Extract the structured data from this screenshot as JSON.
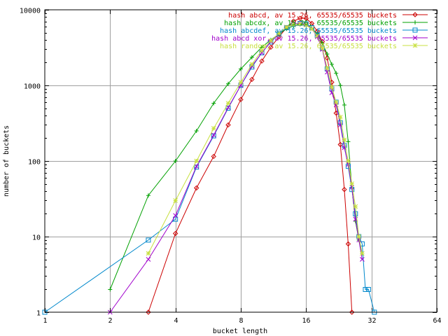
{
  "chart_data": {
    "type": "line",
    "title": "",
    "xlabel": "bucket length",
    "ylabel": "number of buckets",
    "x_scale": "log2",
    "y_scale": "log10",
    "xlim": [
      1,
      64
    ],
    "ylim": [
      1,
      10000
    ],
    "x_ticks": [
      "1",
      "2",
      "4",
      "8",
      "16",
      "32",
      "64"
    ],
    "y_ticks": [
      "1",
      "10",
      "100",
      "1000",
      "10000"
    ],
    "grid": true,
    "legend_position": "top-right",
    "series": [
      {
        "name": "hash abcd, av 15.26, 65535/65535 buckets",
        "color": "#cc0000",
        "marker": "diamond",
        "points": [
          [
            3,
            1
          ],
          [
            4,
            11
          ],
          [
            5,
            44
          ],
          [
            6,
            115
          ],
          [
            7,
            300
          ],
          [
            8,
            650
          ],
          [
            9,
            1200
          ],
          [
            10,
            2100
          ],
          [
            11,
            3200
          ],
          [
            12,
            4400
          ],
          [
            13,
            5800
          ],
          [
            14,
            7100
          ],
          [
            15,
            7700
          ],
          [
            16,
            7700
          ],
          [
            17,
            6600
          ],
          [
            18,
            5200
          ],
          [
            19,
            3800
          ],
          [
            20,
            2300
          ],
          [
            21,
            1100
          ],
          [
            22,
            430
          ],
          [
            23,
            165
          ],
          [
            24,
            42
          ],
          [
            25,
            8
          ],
          [
            26,
            1
          ]
        ]
      },
      {
        "name": "hash abcdx, av 15.26, 65535/65535 buckets",
        "color": "#00a000",
        "marker": "plus",
        "points": [
          [
            2,
            2
          ],
          [
            3,
            35
          ],
          [
            4,
            100
          ],
          [
            5,
            250
          ],
          [
            6,
            580
          ],
          [
            7,
            1050
          ],
          [
            8,
            1650
          ],
          [
            9,
            2350
          ],
          [
            10,
            3200
          ],
          [
            11,
            4000
          ],
          [
            12,
            4800
          ],
          [
            13,
            5600
          ],
          [
            14,
            6100
          ],
          [
            15,
            6400
          ],
          [
            16,
            6200
          ],
          [
            17,
            5700
          ],
          [
            18,
            4800
          ],
          [
            19,
            3600
          ],
          [
            20,
            2600
          ],
          [
            21,
            1900
          ],
          [
            22,
            1450
          ],
          [
            23,
            1000
          ],
          [
            24,
            550
          ],
          [
            25,
            180
          ],
          [
            26,
            44
          ],
          [
            27,
            16
          ],
          [
            28,
            9
          ],
          [
            29,
            6
          ]
        ]
      },
      {
        "name": "hash abcdef, av 15.26, 65535/65535 buckets",
        "color": "#0088cc",
        "marker": "square",
        "points": [
          [
            1,
            1
          ],
          [
            3,
            9
          ],
          [
            4,
            17
          ],
          [
            5,
            83
          ],
          [
            6,
            215
          ],
          [
            7,
            500
          ],
          [
            8,
            1000
          ],
          [
            9,
            1750
          ],
          [
            10,
            2700
          ],
          [
            11,
            3750
          ],
          [
            12,
            4800
          ],
          [
            13,
            5800
          ],
          [
            14,
            6400
          ],
          [
            15,
            6600
          ],
          [
            16,
            6500
          ],
          [
            17,
            5800
          ],
          [
            18,
            4600
          ],
          [
            19,
            3100
          ],
          [
            20,
            1650
          ],
          [
            21,
            900
          ],
          [
            22,
            600
          ],
          [
            23,
            320
          ],
          [
            24,
            160
          ],
          [
            25,
            85
          ],
          [
            26,
            42
          ],
          [
            27,
            20
          ],
          [
            28,
            10
          ],
          [
            29,
            8
          ],
          [
            30,
            2
          ],
          [
            31,
            2
          ],
          [
            33,
            1
          ]
        ]
      },
      {
        "name": "hash abcd xor, av 15.26, 65535/65535 buckets",
        "color": "#a000cc",
        "marker": "cross",
        "points": [
          [
            2,
            1
          ],
          [
            3,
            5
          ],
          [
            4,
            19
          ],
          [
            5,
            85
          ],
          [
            6,
            220
          ],
          [
            7,
            510
          ],
          [
            8,
            1000
          ],
          [
            9,
            1800
          ],
          [
            10,
            2700
          ],
          [
            11,
            3800
          ],
          [
            12,
            4900
          ],
          [
            13,
            5900
          ],
          [
            14,
            6500
          ],
          [
            15,
            6600
          ],
          [
            16,
            6400
          ],
          [
            17,
            5600
          ],
          [
            18,
            4400
          ],
          [
            19,
            3000
          ],
          [
            20,
            1500
          ],
          [
            21,
            800
          ],
          [
            22,
            550
          ],
          [
            23,
            300
          ],
          [
            24,
            150
          ],
          [
            25,
            90
          ],
          [
            26,
            45
          ],
          [
            27,
            17
          ],
          [
            28,
            9
          ],
          [
            29,
            5
          ]
        ]
      },
      {
        "name": "hash random, av 15.26, 65535/65535 buckets",
        "color": "#c8e040",
        "marker": "star",
        "points": [
          [
            3,
            6
          ],
          [
            4,
            30
          ],
          [
            5,
            100
          ],
          [
            6,
            270
          ],
          [
            7,
            580
          ],
          [
            8,
            1100
          ],
          [
            9,
            1900
          ],
          [
            10,
            2900
          ],
          [
            11,
            3900
          ],
          [
            12,
            4900
          ],
          [
            13,
            5900
          ],
          [
            14,
            6400
          ],
          [
            15,
            6500
          ],
          [
            16,
            6300
          ],
          [
            17,
            5600
          ],
          [
            18,
            4500
          ],
          [
            19,
            3100
          ],
          [
            20,
            1700
          ],
          [
            21,
            950
          ],
          [
            22,
            600
          ],
          [
            23,
            380
          ],
          [
            24,
            190
          ],
          [
            25,
            100
          ],
          [
            26,
            50
          ],
          [
            27,
            25
          ],
          [
            28,
            10
          ],
          [
            29,
            6
          ]
        ]
      }
    ]
  }
}
